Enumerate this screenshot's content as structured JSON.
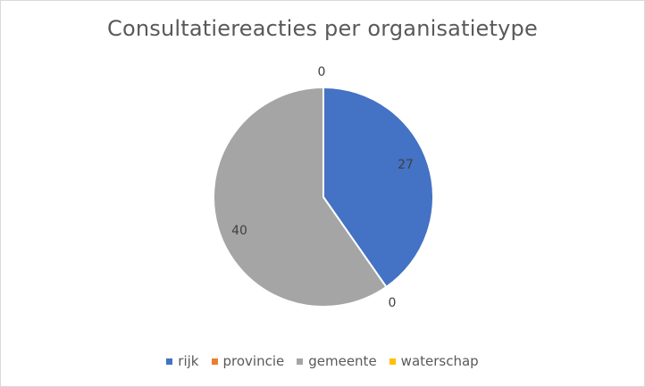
{
  "chart_data": {
    "type": "pie",
    "title": "Consultatiereacties per organisatietype",
    "categories": [
      "rijk",
      "provincie",
      "gemeente",
      "waterschap"
    ],
    "values": [
      27,
      0,
      40,
      0
    ],
    "colors": [
      "#4472c4",
      "#ed7d31",
      "#a5a5a5",
      "#ffc000"
    ],
    "data_labels": [
      "27",
      "0",
      "40",
      "0"
    ],
    "start_angle": 0,
    "direction": "clockwise",
    "legend_position": "bottom"
  }
}
